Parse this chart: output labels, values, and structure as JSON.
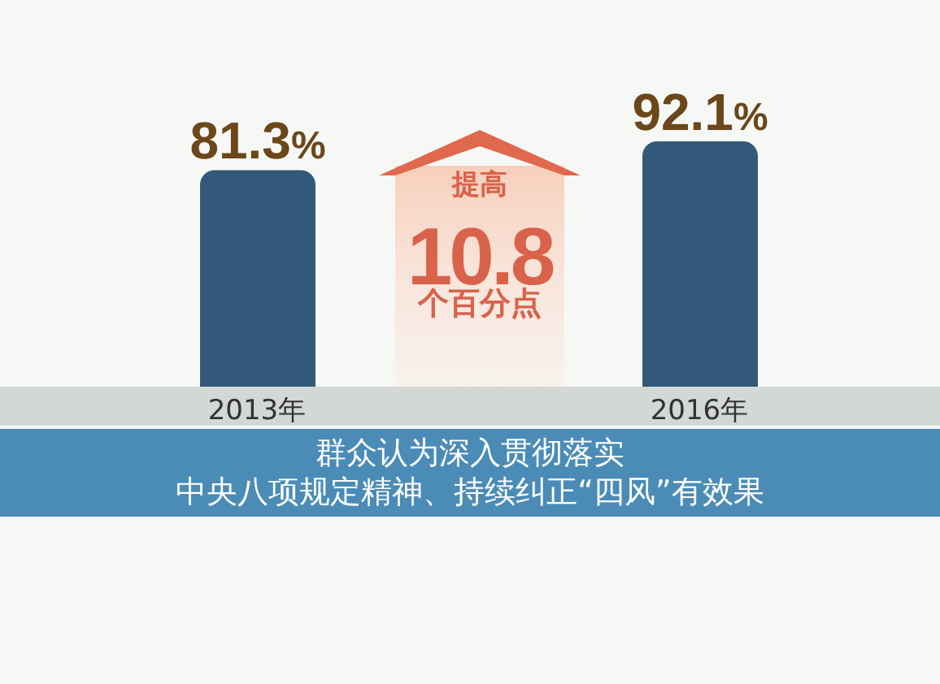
{
  "chart_data": {
    "type": "bar",
    "title": "群众认为深入贯彻落实中央八项规定精神、持续纠正“四风”有效果",
    "categories": [
      "2013年",
      "2016年"
    ],
    "values": [
      81.3,
      92.1
    ],
    "value_labels": [
      "81.3%",
      "92.1%"
    ],
    "color": "#33597a",
    "annotations": [
      "提高",
      "10.8",
      "个百分点"
    ]
  }
}
